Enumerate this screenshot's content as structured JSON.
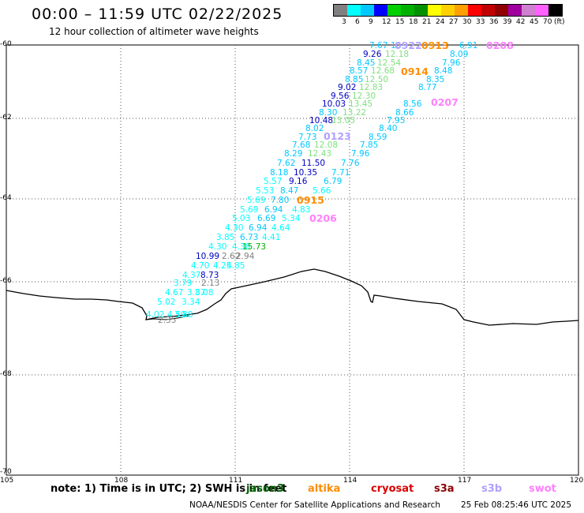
{
  "title": "00:00 – 11:59 UTC 02/22/2025",
  "subtitle": "12 hour collection of altimeter wave heights",
  "legend": {
    "colors": [
      "#808080",
      "#00ffff",
      "#00c8ff",
      "#0000ff",
      "#00d000",
      "#00b000",
      "#009000",
      "#ffff00",
      "#ffd000",
      "#ffa000",
      "#ff0000",
      "#c00000",
      "#900000",
      "#a000a0",
      "#d080d0",
      "#ff60ff",
      "#000000"
    ],
    "labels": [
      "3",
      "6",
      "9",
      "12",
      "15",
      "18",
      "21",
      "24",
      "27",
      "30",
      "33",
      "36",
      "39",
      "42",
      "45",
      "70",
      "(ft)"
    ]
  },
  "axes": {
    "lat_ticks": [
      "-60",
      "-62",
      "-64",
      "-66",
      "-68",
      "-70"
    ],
    "lon_ticks": [
      "105",
      "108",
      "111",
      "114",
      "117",
      "120"
    ]
  },
  "note": {
    "text": "note:  1) Time is in UTC; 2) SWH is in feet",
    "satellites": [
      {
        "name": "jason3",
        "color": "#006400"
      },
      {
        "name": "altika",
        "color": "#ff8c00"
      },
      {
        "name": "cryosat",
        "color": "#dd0000"
      },
      {
        "name": "s3a",
        "color": "#8b0000"
      },
      {
        "name": "s3b",
        "color": "#b0a0ff"
      },
      {
        "name": "swot",
        "color": "#ff80ff"
      }
    ]
  },
  "credit": "NOAA/NESDIS Center for Satellite Applications and Research",
  "timestamp": "25 Feb 08:25:46 UTC 2025",
  "pass_times": [
    {
      "label": "0922",
      "color": "#b0a0ff"
    },
    {
      "label": "0913",
      "color": "#ff8c00"
    },
    {
      "label": "0208",
      "color": "#ff80ff"
    },
    {
      "label": "0914",
      "color": "#ff8c00"
    },
    {
      "label": "0207",
      "color": "#ff80ff"
    },
    {
      "label": "0123",
      "color": "#b0a0ff"
    },
    {
      "label": "0915",
      "color": "#ff8c00"
    },
    {
      "label": "0206",
      "color": "#ff80ff"
    }
  ],
  "observations": [
    {
      "v": "7.67",
      "c": "#00c8ff"
    },
    {
      "v": "10.",
      "c": "#00c8ff"
    },
    {
      "v": "6.91",
      "c": "#00c8ff"
    },
    {
      "v": "9.26",
      "c": "#0000c0"
    },
    {
      "v": "12.18",
      "c": "#80e080"
    },
    {
      "v": "8.09",
      "c": "#00c8ff"
    },
    {
      "v": "8.45",
      "c": "#00c8ff"
    },
    {
      "v": "12.54",
      "c": "#80e080"
    },
    {
      "v": "7.96",
      "c": "#00c8ff"
    },
    {
      "v": "8.57",
      "c": "#00c8ff"
    },
    {
      "v": "12.68",
      "c": "#80e080"
    },
    {
      "v": "8.48",
      "c": "#00c8ff"
    },
    {
      "v": "8.85",
      "c": "#00c8ff"
    },
    {
      "v": "12.50",
      "c": "#80e080"
    },
    {
      "v": "8.35",
      "c": "#00c8ff"
    },
    {
      "v": "9.02",
      "c": "#0000c0"
    },
    {
      "v": "12.83",
      "c": "#80e080"
    },
    {
      "v": "8.77",
      "c": "#00c8ff"
    },
    {
      "v": "9.56",
      "c": "#0000c0"
    },
    {
      "v": "12.30",
      "c": "#80e080"
    },
    {
      "v": "10.03",
      "c": "#0000c0"
    },
    {
      "v": "13.45",
      "c": "#80e080"
    },
    {
      "v": "8.56",
      "c": "#00c8ff"
    },
    {
      "v": "8.30",
      "c": "#00c8ff"
    },
    {
      "v": "13.22",
      "c": "#80e080"
    },
    {
      "v": "8.66",
      "c": "#00c8ff"
    },
    {
      "v": "10.48",
      "c": "#0000c0"
    },
    {
      "v": "13.05",
      "c": "#80e080"
    },
    {
      "v": "7.95",
      "c": "#00c8ff"
    },
    {
      "v": "8.02",
      "c": "#00c8ff"
    },
    {
      "v": "8.40",
      "c": "#00c8ff"
    },
    {
      "v": "7.73",
      "c": "#00c8ff"
    },
    {
      "v": "8.59",
      "c": "#00c8ff"
    },
    {
      "v": "7.68",
      "c": "#00c8ff"
    },
    {
      "v": "12.08",
      "c": "#80e080"
    },
    {
      "v": "7.85",
      "c": "#00c8ff"
    },
    {
      "v": "8.29",
      "c": "#00c8ff"
    },
    {
      "v": "12.43",
      "c": "#80e080"
    },
    {
      "v": "7.96",
      "c": "#00c8ff"
    },
    {
      "v": "7.62",
      "c": "#00c8ff"
    },
    {
      "v": "11.50",
      "c": "#0000c0"
    },
    {
      "v": "7.76",
      "c": "#00c8ff"
    },
    {
      "v": "8.18",
      "c": "#00c8ff"
    },
    {
      "v": "10.35",
      "c": "#0000c0"
    },
    {
      "v": "7.71",
      "c": "#00c8ff"
    },
    {
      "v": "5.57",
      "c": "#00ffff"
    },
    {
      "v": "9.16",
      "c": "#0000c0"
    },
    {
      "v": "6.79",
      "c": "#00c8ff"
    },
    {
      "v": "5.53",
      "c": "#00ffff"
    },
    {
      "v": "8.47",
      "c": "#00c8ff"
    },
    {
      "v": "5.66",
      "c": "#00ffff"
    },
    {
      "v": "5.69",
      "c": "#00ffff"
    },
    {
      "v": "7.80",
      "c": "#00c8ff"
    },
    {
      "v": "5.69",
      "c": "#00ffff"
    },
    {
      "v": "6.94",
      "c": "#00c8ff"
    },
    {
      "v": "4.83",
      "c": "#00ffff"
    },
    {
      "v": "5.03",
      "c": "#00ffff"
    },
    {
      "v": "6.69",
      "c": "#00c8ff"
    },
    {
      "v": "5.34",
      "c": "#00ffff"
    },
    {
      "v": "4.30",
      "c": "#00ffff"
    },
    {
      "v": "6.94",
      "c": "#00c8ff"
    },
    {
      "v": "4.64",
      "c": "#00ffff"
    },
    {
      "v": "3.85",
      "c": "#00ffff"
    },
    {
      "v": "6.73",
      "c": "#00c8ff"
    },
    {
      "v": "4.41",
      "c": "#00ffff"
    },
    {
      "v": "4.30",
      "c": "#00ffff"
    },
    {
      "v": "4.38",
      "c": "#00ffff"
    },
    {
      "v": "15.73",
      "c": "#00b000"
    },
    {
      "v": "10.99",
      "c": "#0000c0"
    },
    {
      "v": "2.62",
      "c": "#808080"
    },
    {
      "v": "2.94",
      "c": "#808080"
    },
    {
      "v": "4.70",
      "c": "#00ffff"
    },
    {
      "v": "4.25",
      "c": "#00ffff"
    },
    {
      "v": "4.85",
      "c": "#00ffff"
    },
    {
      "v": "4.37",
      "c": "#00ffff"
    },
    {
      "v": "8.73",
      "c": "#0000c0"
    },
    {
      "v": "3.79",
      "c": "#00ffff"
    },
    {
      "v": "2.13",
      "c": "#808080"
    },
    {
      "v": "4.67",
      "c": "#00ffff"
    },
    {
      "v": "3.87",
      "c": "#00ffff"
    },
    {
      "v": "3.08",
      "c": "#00ffff"
    },
    {
      "v": "5.02",
      "c": "#00ffff"
    },
    {
      "v": "3.34",
      "c": "#00ffff"
    },
    {
      "v": "4.02",
      "c": "#00ffff"
    },
    {
      "v": "4.59",
      "c": "#00ffff"
    },
    {
      "v": "3.88",
      "c": "#00ffff"
    },
    {
      "v": "2.35",
      "c": "#808080"
    }
  ]
}
